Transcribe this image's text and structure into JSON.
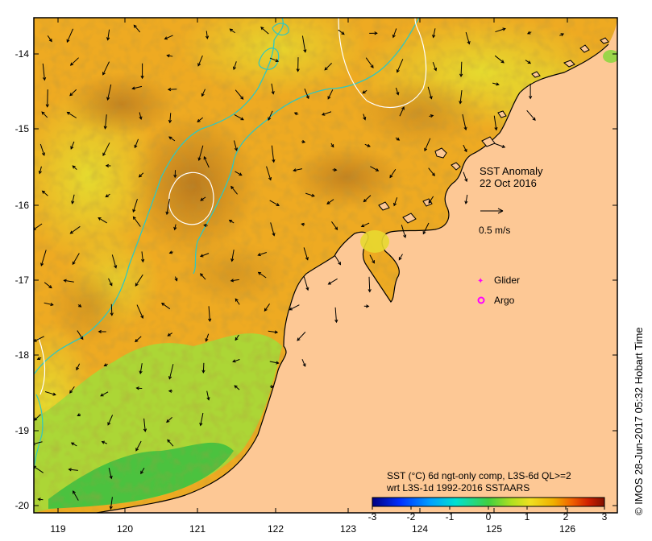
{
  "map": {
    "title_line1": "SST Anomaly",
    "title_line2": "22 Oct 2016",
    "vector_scale_label": "0.5 m/s",
    "legend": {
      "glider_label": "Glider",
      "argo_label": "Argo"
    },
    "caption_line1": "SST (°C) 6d ngt-only comp, L3S-6d QL>=2",
    "caption_line2": "wrt L3S-1d 1992-2016 SSTAARS",
    "credit": "© IMOS 28-Jun-2017 05:32 Hobart Time",
    "x_ticks": [
      "119",
      "120",
      "121",
      "122",
      "123",
      "124",
      "125",
      "126"
    ],
    "y_ticks": [
      "-14",
      "-15",
      "-16",
      "-17",
      "-18",
      "-19",
      "-20"
    ],
    "colorbar": {
      "min": -3,
      "max": 3,
      "labels": [
        "-3",
        "-2",
        "-1",
        "0",
        "1",
        "2",
        "3"
      ]
    },
    "colors": {
      "land": "#fdc895",
      "anomaly_warm": "#f0a020",
      "anomaly_hot": "#c8801a",
      "anomaly_mild": "#e8d830",
      "anomaly_green": "#8fd640",
      "contour_cyan": "#30c8c0",
      "contour_white": "#ffffff",
      "glider": "#ff00ff",
      "argo": "#ff00ff"
    }
  }
}
